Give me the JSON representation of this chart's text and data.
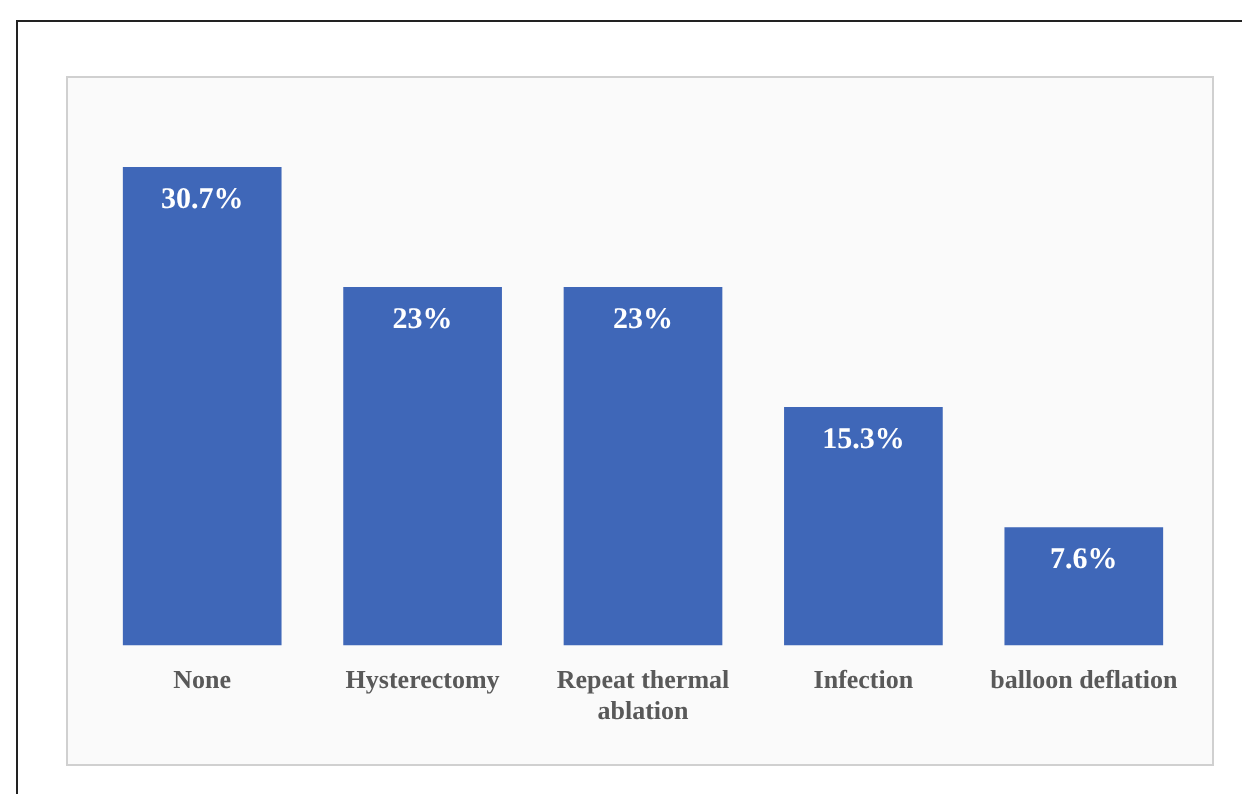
{
  "chart_data": {
    "type": "bar",
    "categories": [
      "None",
      "Hysterectomy",
      "Repeat thermal ablation",
      "Infection",
      "balloon deflation"
    ],
    "values": [
      30.7,
      23,
      23,
      15.3,
      7.6
    ],
    "value_labels": [
      "30.7%",
      "23%",
      "23%",
      "15.3%",
      "7.6%"
    ],
    "color": "#3f67b8",
    "grid": false,
    "legend": false
  }
}
